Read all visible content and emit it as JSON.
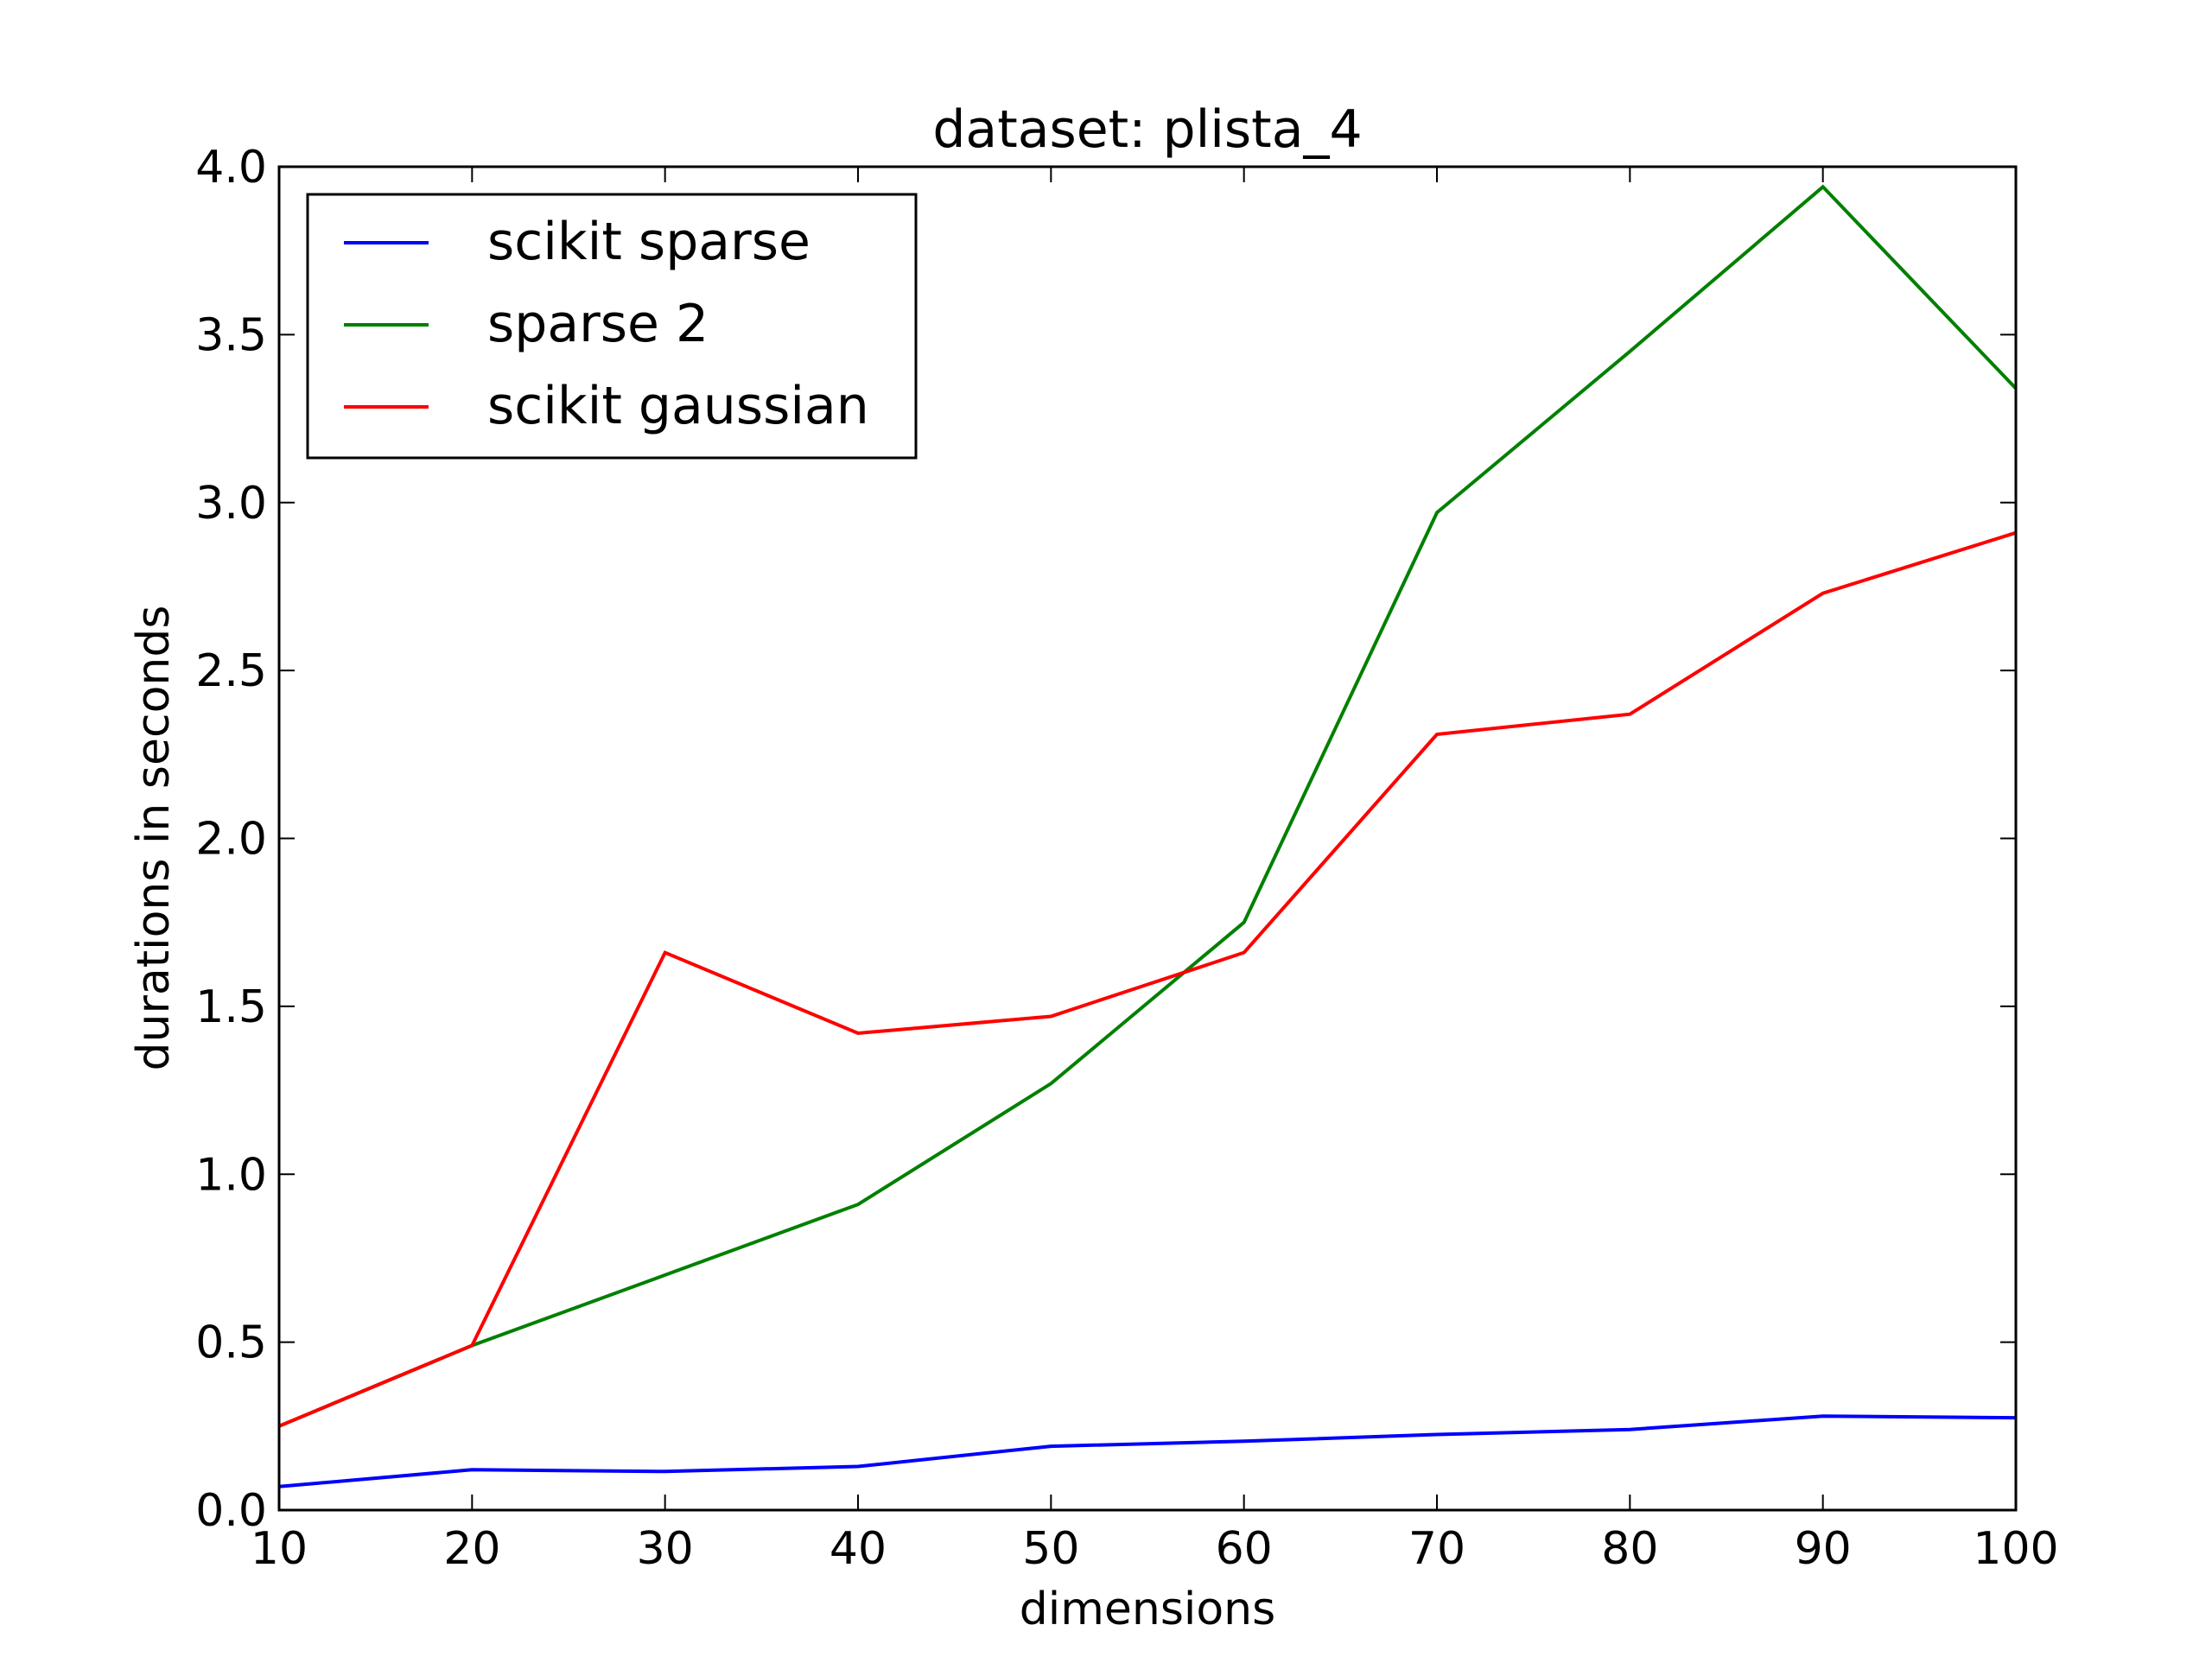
{
  "chart_data": {
    "type": "line",
    "title": "dataset: plista_4",
    "xlabel": "dimensions",
    "ylabel": "durations in seconds",
    "x": [
      10,
      20,
      30,
      40,
      50,
      60,
      70,
      80,
      90,
      100
    ],
    "xlim": [
      10,
      100
    ],
    "ylim": [
      0.0,
      4.0
    ],
    "xticks": [
      "10",
      "20",
      "30",
      "40",
      "50",
      "60",
      "70",
      "80",
      "90",
      "100"
    ],
    "yticks": [
      "0.0",
      "0.5",
      "1.0",
      "1.5",
      "2.0",
      "2.5",
      "3.0",
      "3.5",
      "4.0"
    ],
    "grid": false,
    "legend_position": "upper-left",
    "series": [
      {
        "name": "scikit sparse",
        "color": "#0000ff",
        "values": [
          0.07,
          0.12,
          0.115,
          0.13,
          0.19,
          0.205,
          0.225,
          0.24,
          0.28,
          0.275
        ]
      },
      {
        "name": "sparse 2",
        "color": "#008000",
        "values": [
          0.25,
          0.49,
          0.7,
          0.91,
          1.27,
          1.75,
          2.97,
          3.45,
          3.94,
          3.34
        ]
      },
      {
        "name": "scikit gaussian",
        "color": "#ff0000",
        "values": [
          0.25,
          0.49,
          1.66,
          1.42,
          1.47,
          1.66,
          2.31,
          2.37,
          2.73,
          2.91
        ]
      }
    ]
  }
}
